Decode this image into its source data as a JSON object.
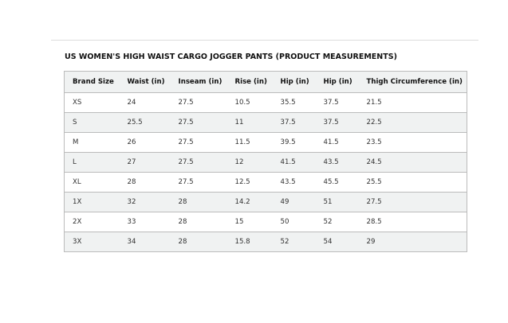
{
  "title": "US WOMEN'S HIGH WAIST CARGO JOGGER PANTS (PRODUCT MEASUREMENTS)",
  "columns": [
    "Brand Size",
    "Waist (in)",
    "Inseam (in)",
    "Rise (in)",
    "Hip (in)",
    "Hip (in)",
    "Thigh Circumference (in)"
  ],
  "rows": [
    [
      "XS",
      "24",
      "27.5",
      "10.5",
      "35.5",
      "37.5",
      "21.5"
    ],
    [
      "S",
      "25.5",
      "27.5",
      "11",
      "37.5",
      "37.5",
      "22.5"
    ],
    [
      "M",
      "26",
      "27.5",
      "11.5",
      "39.5",
      "41.5",
      "23.5"
    ],
    [
      "L",
      "27",
      "27.5",
      "12",
      "41.5",
      "43.5",
      "24.5"
    ],
    [
      "XL",
      "28",
      "27.5",
      "12.5",
      "43.5",
      "45.5",
      "25.5"
    ],
    [
      "1X",
      "32",
      "28",
      "14.2",
      "49",
      "51",
      "27.5"
    ],
    [
      "2X",
      "33",
      "28",
      "15",
      "50",
      "52",
      "28.5"
    ],
    [
      "3X",
      "34",
      "28",
      "15.8",
      "52",
      "54",
      "29"
    ]
  ]
}
